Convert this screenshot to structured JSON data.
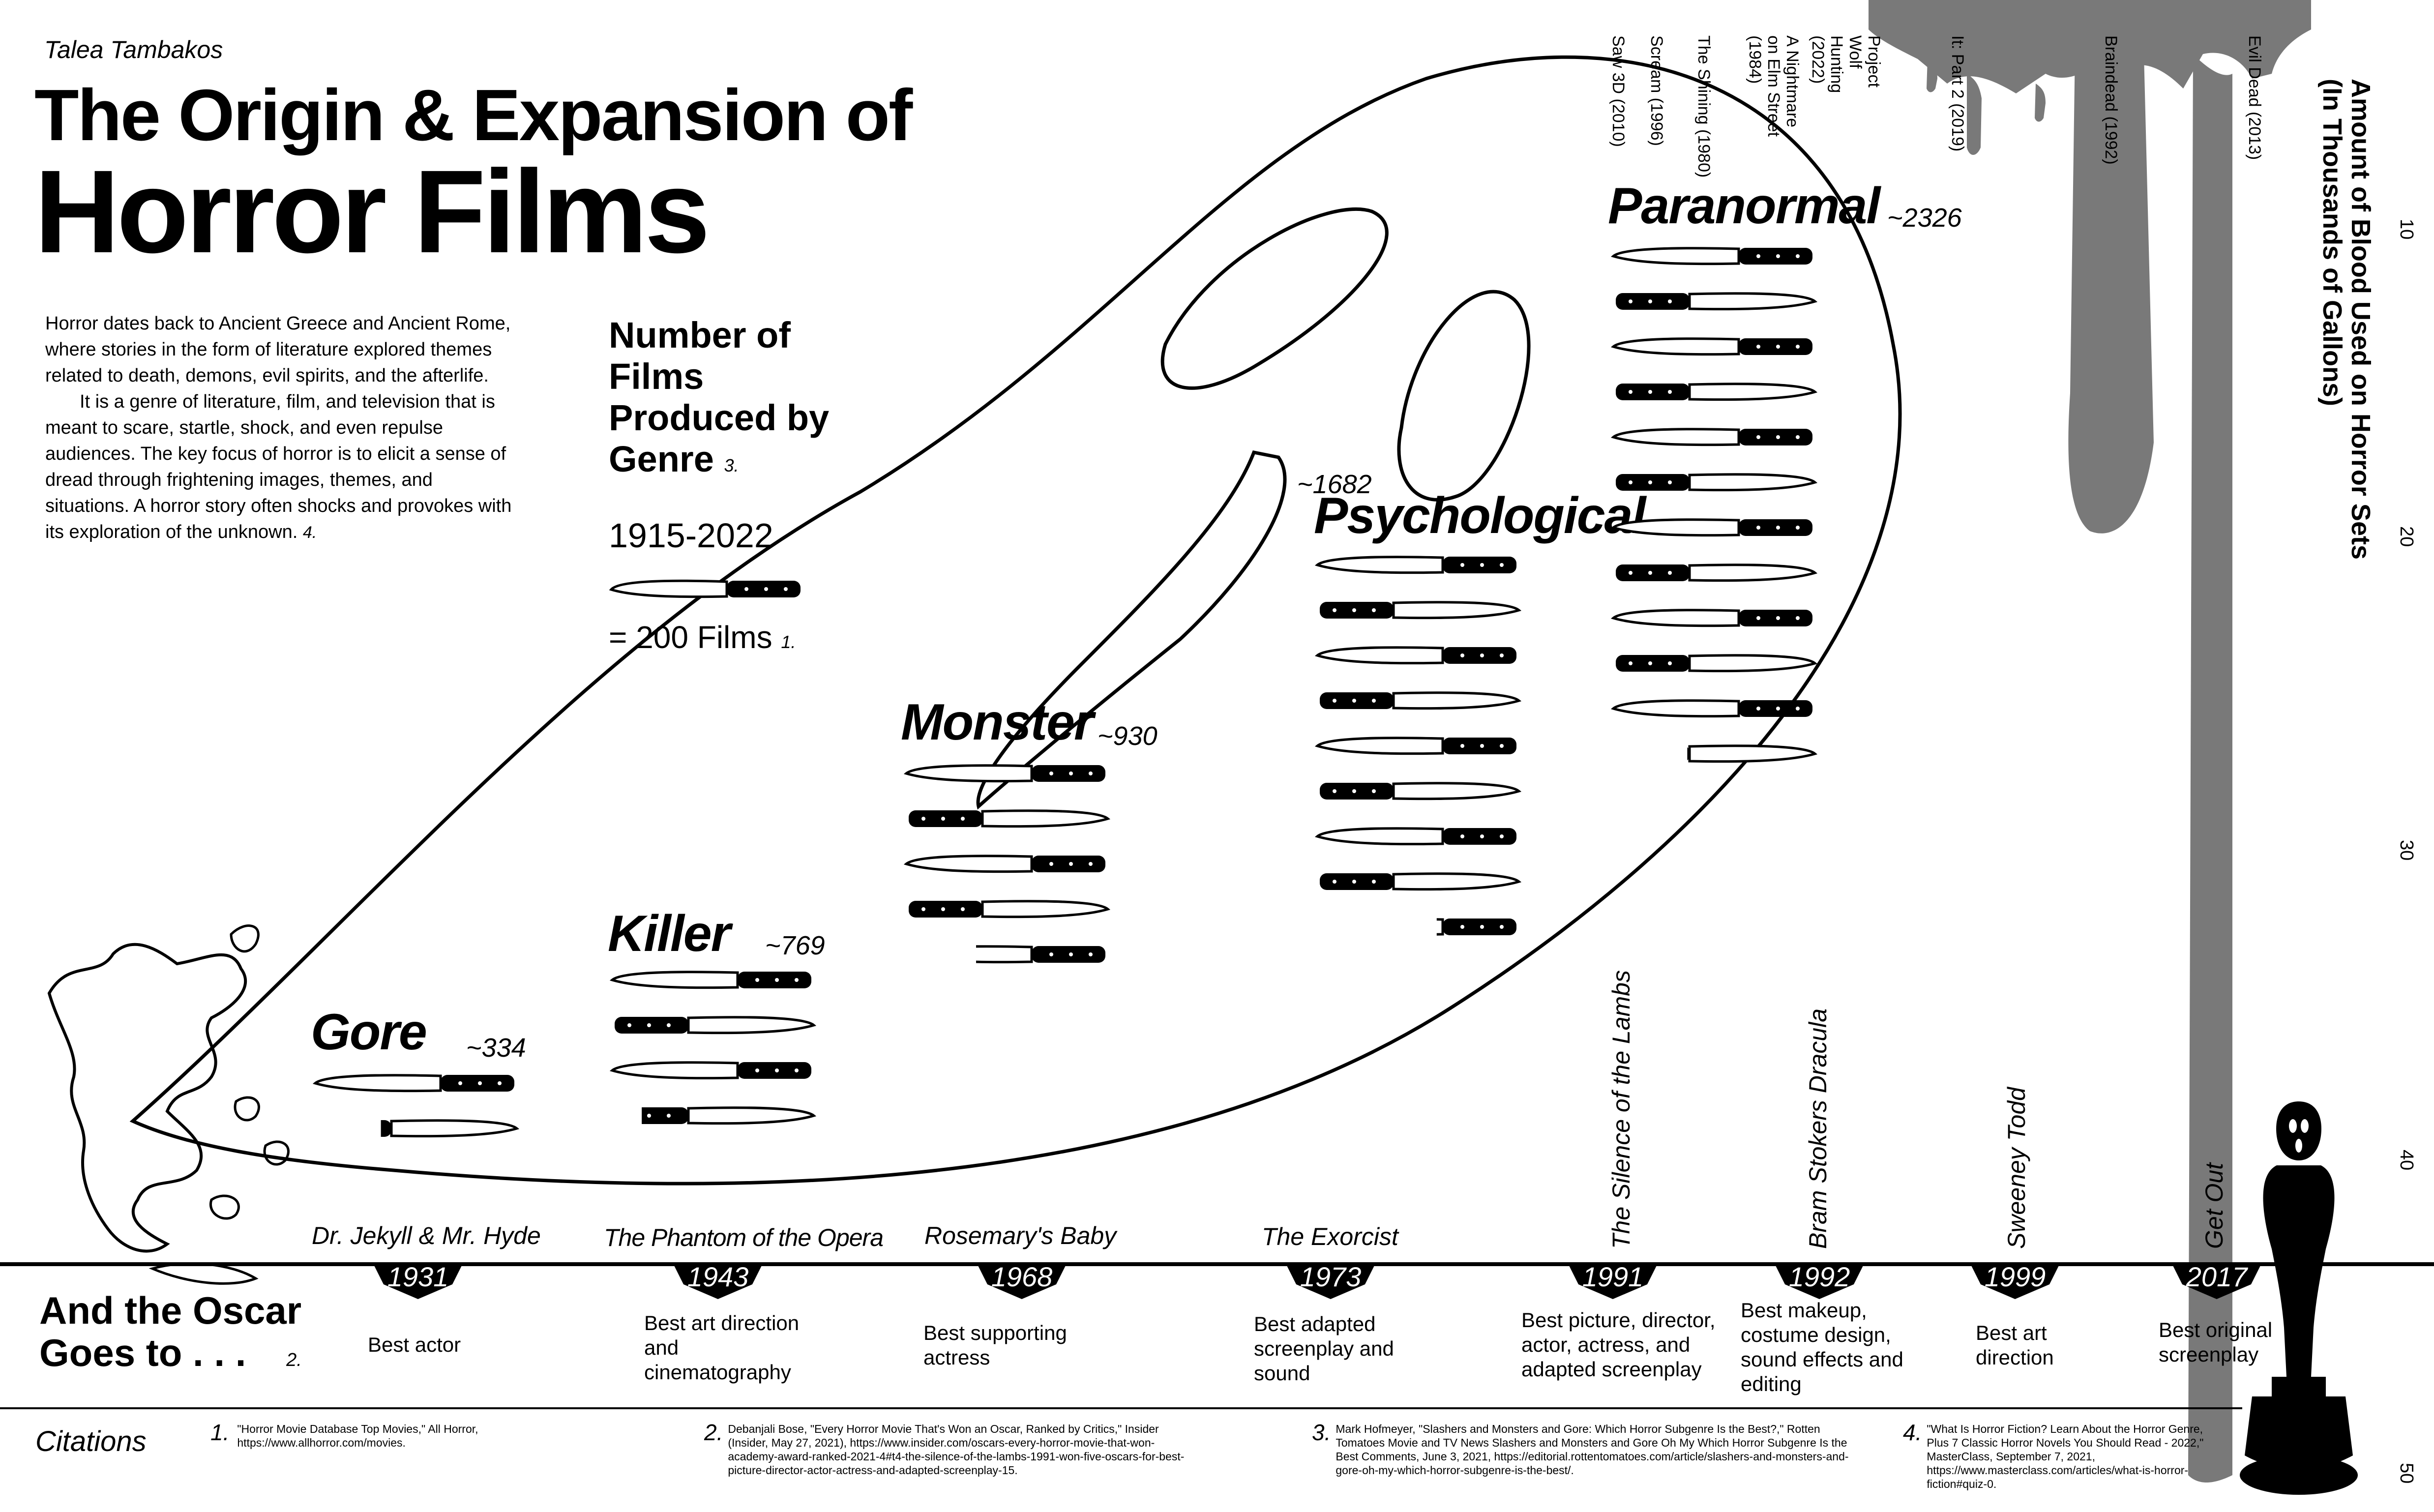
{
  "author": "Talea Tambakos",
  "title_line1": "The Origin & Expansion of",
  "title_line2": "Horror Films",
  "intro_p1": "Horror dates back to Ancient Greece and Ancient Rome, where stories in the form of literature explored themes related to death, demons, evil spirits, and the afterlife.",
  "intro_p2": "It is a genre of literature, film, and television that is meant to scare, startle, shock, and even repulse audiences. The key focus of horror is to elicit a sense of dread through frightening images, themes, and situations. A horror story often shocks and provokes with its exploration of the unknown.",
  "intro_ref": "4.",
  "legend": {
    "heading": "Number of Films Produced by Genre",
    "heading_ref": "3.",
    "years": "1915-2022",
    "unit": "= 200 Films",
    "unit_ref": "1."
  },
  "genres": [
    {
      "name": "Gore",
      "count": "~334",
      "films": 334
    },
    {
      "name": "Killer",
      "count": "~769",
      "films": 769
    },
    {
      "name": "Monster",
      "count": "~930",
      "films": 930
    },
    {
      "name": "Psychological",
      "count": "~1682",
      "films": 1682
    },
    {
      "name": "Paranormal",
      "count": "~2326",
      "films": 2326
    }
  ],
  "blood_axis": {
    "title_line1": "Amount of Blood Used on Horror Sets",
    "title_line2": "(In Thousands of Gallons)",
    "ticks": [
      "10",
      "20",
      "30",
      "40",
      "50"
    ],
    "color": "#6e6e6e"
  },
  "blood_films": [
    "Saw 3D (2010)",
    "Scream (1996)",
    "The Shining (1980)",
    "A Nightmare on Elm Street (1984)",
    "Project Wolf Hunting (2022)",
    "It: Part 2 (2019)",
    "Braindead (1992)",
    "Evil Dead (2013)"
  ],
  "oscar": {
    "heading_line1": "And the Oscar",
    "heading_line2": "Goes to . . .",
    "heading_ref": "2.",
    "entries": [
      {
        "film": "Dr. Jekyll & Mr. Hyde",
        "year": "1931",
        "award": "Best actor"
      },
      {
        "film": "The Phantom of the Opera",
        "year": "1943",
        "award": "Best art direction and cinematography"
      },
      {
        "film": "Rosemary's Baby",
        "year": "1968",
        "award": "Best supporting actress"
      },
      {
        "film": "The Exorcist",
        "year": "1973",
        "award": "Best adapted screenplay and sound"
      },
      {
        "film": "The Silence of the Lambs",
        "year": "1991",
        "award": "Best picture, director, actor, actress, and adapted screenplay"
      },
      {
        "film": "Bram Stokers Dracula",
        "year": "1992",
        "award": "Best makeup, costume design, sound effects and editing"
      },
      {
        "film": "Sweeney Todd",
        "year": "1999",
        "award": "Best art direction"
      },
      {
        "film": "Get Out",
        "year": "2017",
        "award": "Best original screenplay"
      }
    ]
  },
  "citations": {
    "label": "Citations",
    "items": [
      {
        "num": "1.",
        "text": "\"Horror Movie Database Top Movies,\" All Horror, https://www.allhorror.com/movies."
      },
      {
        "num": "2.",
        "text": "Debanjali Bose, \"Every Horror Movie That's Won an Oscar, Ranked by Critics,\" Insider (Insider, May 27, 2021), https://www.insider.com/oscars-every-horror-movie-that-won-academy-award-ranked-2021-4#t4-the-silence-of-the-lambs-1991-won-five-oscars-for-best-picture-director-actor-actress-and-adapted-screenplay-15."
      },
      {
        "num": "3.",
        "text": "Mark Hofmeyer, \"Slashers and Monsters and Gore: Which Horror Subgenre Is the Best?,\" Rotten Tomatoes Movie and TV News Slashers and Monsters and Gore Oh My Which Horror Subgenre Is the Best Comments, June 3, 2021, https://editorial.rottentomatoes.com/article/slashers-and-monsters-and-gore-oh-my-which-horror-subgenre-is-the-best/."
      },
      {
        "num": "4.",
        "text": "\"What Is Horror Fiction? Learn About the Horror Genre, Plus 7 Classic Horror Novels You Should Read - 2022,\" MasterClass, September 7, 2021, https://www.masterclass.com/articles/what-is-horror-fiction#quiz-0."
      }
    ]
  }
}
